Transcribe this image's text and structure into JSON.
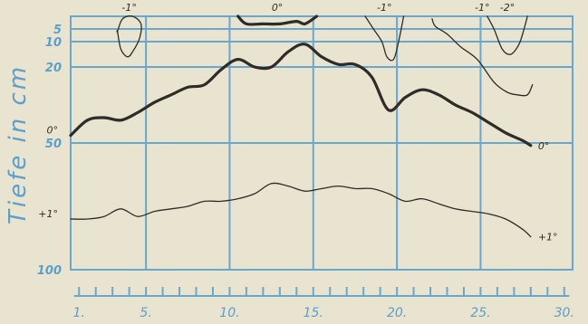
{
  "colors": {
    "paper": "#e8e4cf",
    "grid_blue": "#6aa7cf",
    "label_blue": "#5b9fcb",
    "ink": "#2f2b26"
  },
  "chart_data": {
    "type": "line",
    "ylabel": "Tiefe in cm",
    "x_ticks": [
      "1.",
      "5.",
      "10.",
      "15.",
      "20.",
      "25.",
      "30."
    ],
    "x_tick_values": [
      1,
      5,
      10,
      15,
      20,
      25,
      30
    ],
    "xlim": [
      0.5,
      30.5
    ],
    "y_ticks": [
      "5",
      "10",
      "20",
      "50",
      "100"
    ],
    "y_tick_values": [
      5,
      10,
      20,
      50,
      100
    ],
    "ylim": [
      0,
      100
    ],
    "grid": true,
    "series": [
      {
        "name": "0°",
        "label_left": "0°",
        "label_right": "0°",
        "bold": true,
        "x": [
          0.5,
          1.5,
          2.5,
          3.5,
          4.5,
          5.5,
          6.5,
          7.5,
          8.5,
          9.5,
          10.5,
          11.5,
          12.5,
          13.5,
          14.5,
          15.5,
          16.5,
          17.5,
          18.5,
          19.5,
          20.5,
          21.5,
          22.5,
          23.5,
          24.5,
          25.5,
          26.5,
          27.5,
          28
        ],
        "y": [
          47,
          41,
          40,
          41,
          38,
          34,
          31,
          28,
          27,
          21,
          17,
          20,
          20,
          14,
          11,
          16,
          19,
          19,
          24,
          37,
          32,
          29,
          31,
          35,
          38,
          42,
          46,
          49,
          51
        ]
      },
      {
        "name": "+1°",
        "label_left": "+1°",
        "label_right": "+1°",
        "bold": false,
        "x": [
          0.5,
          1.5,
          2.5,
          3.5,
          4.5,
          5.5,
          6.5,
          7.5,
          8.5,
          9.5,
          10.5,
          11.5,
          12.5,
          13.5,
          14.5,
          15.5,
          16.5,
          17.5,
          18.5,
          19.5,
          20.5,
          21.5,
          22.5,
          23.5,
          24.5,
          25.5,
          26.5,
          27.5,
          28
        ],
        "y": [
          80,
          80,
          79,
          76,
          79,
          77,
          76,
          75,
          73,
          73,
          72,
          70,
          66,
          67,
          69,
          68,
          67,
          68,
          68,
          70,
          73,
          72,
          74,
          76,
          77,
          78,
          80,
          84,
          87
        ]
      },
      {
        "name": "-1°",
        "label_top": "-1°",
        "bold": false,
        "closed": true,
        "x": [
          3.3,
          3.6,
          4.2,
          4.7,
          4.6,
          4.2,
          3.9,
          3.5,
          3.3
        ],
        "y": [
          6,
          1,
          0,
          3,
          9,
          14,
          16,
          13,
          6
        ]
      },
      {
        "name": "0°",
        "label_top": "0°",
        "bold": true,
        "x": [
          10.5,
          11,
          12,
          13,
          14,
          14.5,
          15.2
        ],
        "y": [
          0,
          3,
          3,
          3,
          2,
          3,
          0
        ]
      },
      {
        "name": "-1°",
        "label_top": "-1°",
        "bold": false,
        "x": [
          18.1,
          18.6,
          19.1,
          19.4,
          19.8,
          20.1,
          20.4
        ],
        "y": [
          0,
          5,
          10,
          16,
          17,
          10,
          0
        ]
      },
      {
        "name": "-1°",
        "label_top": "-1°",
        "bold": false,
        "x": [
          22.1,
          22.3,
          23,
          23.8,
          24.8,
          25.8,
          26.6,
          27.2,
          27.8,
          28.1
        ],
        "y": [
          1,
          4,
          7,
          12,
          17,
          26,
          30,
          31,
          31,
          27
        ]
      },
      {
        "name": "-2°",
        "label_top": "-2°",
        "bold": false,
        "x": [
          25.4,
          25.8,
          26.3,
          26.8,
          27.3,
          27.6,
          27.8
        ],
        "y": [
          0,
          5,
          13,
          15,
          11,
          5,
          0
        ]
      }
    ]
  }
}
